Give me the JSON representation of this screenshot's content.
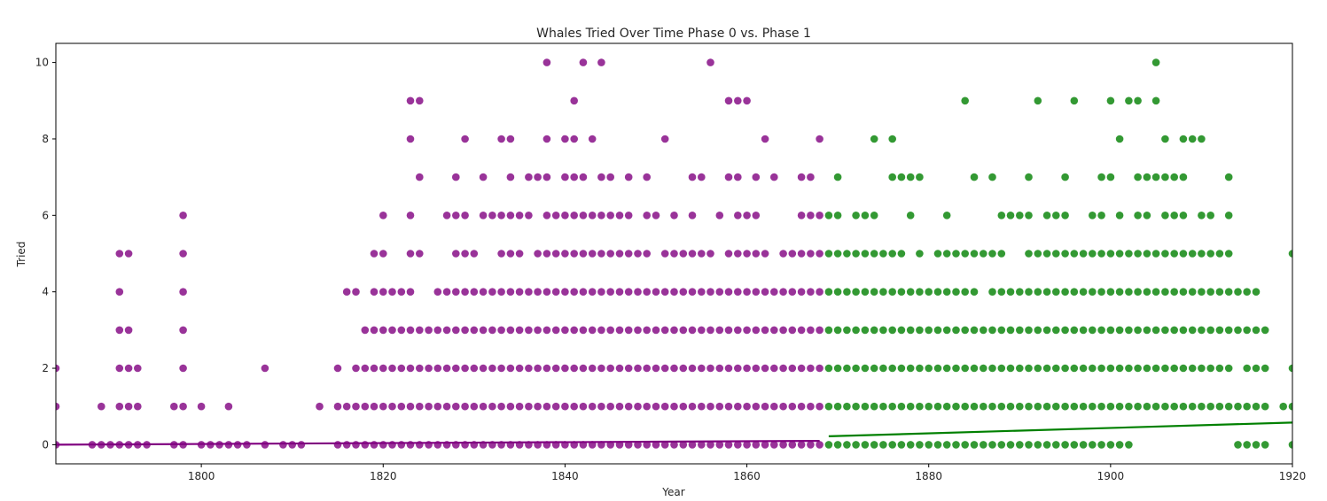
{
  "chart_data": {
    "type": "scatter",
    "title": "Whales Tried Over Time Phase 0 vs. Phase 1",
    "xlabel": "Year",
    "ylabel": "Tried",
    "xlim": [
      1784,
      1920
    ],
    "ylim": [
      -0.5,
      10.5
    ],
    "xticks": [
      1800,
      1820,
      1840,
      1860,
      1880,
      1900,
      1920
    ],
    "yticks": [
      0,
      2,
      4,
      6,
      8,
      10
    ],
    "grid": false,
    "legend": "none",
    "series": [
      {
        "color": "#800080",
        "alpha": 0.8,
        "points_by_y": [
          {
            "y": 0,
            "x": [
              1784,
              1788,
              1789,
              1790,
              1791,
              1792,
              1793,
              1794,
              1797,
              1798,
              1800,
              1801,
              1802,
              1803,
              1804,
              1805,
              1807,
              1809,
              1810,
              1811,
              1815,
              1816,
              1817,
              1818,
              1819,
              1820,
              1821,
              1822,
              1823,
              1824,
              1825,
              1826,
              1827,
              1828,
              1829,
              1830,
              1831,
              1832,
              1833,
              1834,
              1835,
              1836,
              1837,
              1838,
              1839,
              1840,
              1841,
              1842,
              1843,
              1844,
              1845,
              1846,
              1847,
              1848,
              1849,
              1850,
              1851,
              1852,
              1853,
              1854,
              1855,
              1856,
              1857,
              1858,
              1859,
              1860,
              1861,
              1862,
              1863,
              1864,
              1865,
              1866,
              1867,
              1868
            ]
          },
          {
            "y": 1,
            "x": [
              1784,
              1789,
              1791,
              1792,
              1793,
              1797,
              1798,
              1800,
              1803,
              1813,
              1815,
              1816,
              1817,
              1818,
              1819,
              1820,
              1821,
              1822,
              1823,
              1824,
              1825,
              1826,
              1827,
              1828,
              1829,
              1830,
              1831,
              1832,
              1833,
              1834,
              1835,
              1836,
              1837,
              1838,
              1839,
              1840,
              1841,
              1842,
              1843,
              1844,
              1845,
              1846,
              1847,
              1848,
              1849,
              1850,
              1851,
              1852,
              1853,
              1854,
              1855,
              1856,
              1857,
              1858,
              1859,
              1860,
              1861,
              1862,
              1863,
              1864,
              1865,
              1866,
              1867,
              1868
            ]
          },
          {
            "y": 2,
            "x": [
              1784,
              1791,
              1792,
              1793,
              1798,
              1807,
              1815,
              1817,
              1818,
              1819,
              1820,
              1821,
              1822,
              1823,
              1824,
              1825,
              1826,
              1827,
              1828,
              1829,
              1830,
              1831,
              1832,
              1833,
              1834,
              1835,
              1836,
              1837,
              1838,
              1839,
              1840,
              1841,
              1842,
              1843,
              1844,
              1845,
              1846,
              1847,
              1848,
              1849,
              1850,
              1851,
              1852,
              1853,
              1854,
              1855,
              1856,
              1857,
              1858,
              1859,
              1860,
              1861,
              1862,
              1863,
              1864,
              1865,
              1866,
              1867,
              1868
            ]
          },
          {
            "y": 3,
            "x": [
              1791,
              1792,
              1798,
              1818,
              1819,
              1820,
              1821,
              1822,
              1823,
              1824,
              1825,
              1826,
              1827,
              1828,
              1829,
              1830,
              1831,
              1832,
              1833,
              1834,
              1835,
              1836,
              1837,
              1838,
              1839,
              1840,
              1841,
              1842,
              1843,
              1844,
              1845,
              1846,
              1847,
              1848,
              1849,
              1850,
              1851,
              1852,
              1853,
              1854,
              1855,
              1856,
              1857,
              1858,
              1859,
              1860,
              1861,
              1862,
              1863,
              1864,
              1865,
              1866,
              1867,
              1868
            ]
          },
          {
            "y": 4,
            "x": [
              1791,
              1798,
              1816,
              1817,
              1819,
              1820,
              1821,
              1822,
              1823,
              1826,
              1827,
              1828,
              1829,
              1830,
              1831,
              1832,
              1833,
              1834,
              1835,
              1836,
              1837,
              1838,
              1839,
              1840,
              1841,
              1842,
              1843,
              1844,
              1845,
              1846,
              1847,
              1848,
              1849,
              1850,
              1851,
              1852,
              1853,
              1854,
              1855,
              1856,
              1857,
              1858,
              1859,
              1860,
              1861,
              1862,
              1863,
              1864,
              1865,
              1866,
              1867,
              1868
            ]
          },
          {
            "y": 5,
            "x": [
              1791,
              1792,
              1798,
              1819,
              1820,
              1823,
              1824,
              1828,
              1829,
              1830,
              1833,
              1834,
              1835,
              1837,
              1838,
              1839,
              1840,
              1841,
              1842,
              1843,
              1844,
              1845,
              1846,
              1847,
              1848,
              1849,
              1851,
              1852,
              1853,
              1854,
              1855,
              1856,
              1858,
              1859,
              1860,
              1861,
              1862,
              1864,
              1865,
              1866,
              1867,
              1868
            ]
          },
          {
            "y": 6,
            "x": [
              1798,
              1820,
              1823,
              1827,
              1828,
              1829,
              1831,
              1832,
              1833,
              1834,
              1835,
              1836,
              1838,
              1839,
              1840,
              1841,
              1842,
              1843,
              1844,
              1845,
              1846,
              1847,
              1849,
              1850,
              1852,
              1854,
              1857,
              1859,
              1860,
              1861,
              1866,
              1867,
              1868
            ]
          },
          {
            "y": 7,
            "x": [
              1824,
              1828,
              1831,
              1834,
              1836,
              1837,
              1838,
              1840,
              1841,
              1842,
              1844,
              1845,
              1847,
              1849,
              1854,
              1855,
              1858,
              1859,
              1861,
              1863,
              1866,
              1867
            ]
          },
          {
            "y": 8,
            "x": [
              1823,
              1829,
              1833,
              1834,
              1838,
              1840,
              1841,
              1843,
              1851,
              1862,
              1868
            ]
          },
          {
            "y": 9,
            "x": [
              1823,
              1824,
              1841,
              1858,
              1859,
              1860
            ]
          },
          {
            "y": 10,
            "x": [
              1838,
              1842,
              1844,
              1856
            ]
          }
        ],
        "trend": {
          "x": [
            1784,
            1868
          ],
          "y": [
            0.0,
            0.1
          ]
        }
      },
      {
        "color": "#008000",
        "alpha": 0.8,
        "points_by_y": [
          {
            "y": 0,
            "x": [
              1869,
              1870,
              1871,
              1872,
              1873,
              1874,
              1875,
              1876,
              1877,
              1878,
              1879,
              1880,
              1881,
              1882,
              1883,
              1884,
              1885,
              1886,
              1887,
              1888,
              1889,
              1890,
              1891,
              1892,
              1893,
              1894,
              1895,
              1896,
              1897,
              1898,
              1899,
              1900,
              1901,
              1902,
              1914,
              1915,
              1916,
              1917,
              1920
            ]
          },
          {
            "y": 1,
            "x": [
              1869,
              1870,
              1871,
              1872,
              1873,
              1874,
              1875,
              1876,
              1877,
              1878,
              1879,
              1880,
              1881,
              1882,
              1883,
              1884,
              1885,
              1886,
              1887,
              1888,
              1889,
              1890,
              1891,
              1892,
              1893,
              1894,
              1895,
              1896,
              1897,
              1898,
              1899,
              1900,
              1901,
              1902,
              1903,
              1904,
              1905,
              1906,
              1907,
              1908,
              1909,
              1910,
              1911,
              1912,
              1913,
              1914,
              1915,
              1916,
              1917,
              1919,
              1920
            ]
          },
          {
            "y": 2,
            "x": [
              1869,
              1870,
              1871,
              1872,
              1873,
              1874,
              1875,
              1876,
              1877,
              1878,
              1879,
              1880,
              1881,
              1882,
              1883,
              1884,
              1885,
              1886,
              1887,
              1888,
              1889,
              1890,
              1891,
              1892,
              1893,
              1894,
              1895,
              1896,
              1897,
              1898,
              1899,
              1900,
              1901,
              1902,
              1903,
              1904,
              1905,
              1906,
              1907,
              1908,
              1909,
              1910,
              1911,
              1912,
              1913,
              1915,
              1916,
              1917,
              1920
            ]
          },
          {
            "y": 3,
            "x": [
              1869,
              1870,
              1871,
              1872,
              1873,
              1874,
              1875,
              1876,
              1877,
              1878,
              1879,
              1880,
              1881,
              1882,
              1883,
              1884,
              1885,
              1886,
              1887,
              1888,
              1889,
              1890,
              1891,
              1892,
              1893,
              1894,
              1895,
              1896,
              1897,
              1898,
              1899,
              1900,
              1901,
              1902,
              1903,
              1904,
              1905,
              1906,
              1907,
              1908,
              1909,
              1910,
              1911,
              1912,
              1913,
              1914,
              1915,
              1916,
              1917
            ]
          },
          {
            "y": 4,
            "x": [
              1869,
              1870,
              1871,
              1872,
              1873,
              1874,
              1875,
              1876,
              1877,
              1878,
              1879,
              1880,
              1881,
              1882,
              1883,
              1884,
              1885,
              1887,
              1888,
              1889,
              1890,
              1891,
              1892,
              1893,
              1894,
              1895,
              1896,
              1897,
              1898,
              1899,
              1900,
              1901,
              1902,
              1903,
              1904,
              1905,
              1906,
              1907,
              1908,
              1909,
              1910,
              1911,
              1912,
              1913,
              1914,
              1915,
              1916
            ]
          },
          {
            "y": 5,
            "x": [
              1869,
              1870,
              1871,
              1872,
              1873,
              1874,
              1875,
              1876,
              1877,
              1879,
              1881,
              1882,
              1883,
              1884,
              1885,
              1886,
              1887,
              1888,
              1891,
              1892,
              1893,
              1894,
              1895,
              1896,
              1897,
              1898,
              1899,
              1900,
              1901,
              1902,
              1903,
              1904,
              1905,
              1906,
              1907,
              1908,
              1909,
              1910,
              1911,
              1912,
              1913,
              1920
            ]
          },
          {
            "y": 6,
            "x": [
              1869,
              1870,
              1872,
              1873,
              1874,
              1878,
              1882,
              1888,
              1889,
              1890,
              1891,
              1893,
              1894,
              1895,
              1898,
              1899,
              1901,
              1903,
              1904,
              1906,
              1907,
              1908,
              1910,
              1911,
              1913
            ]
          },
          {
            "y": 7,
            "x": [
              1870,
              1876,
              1877,
              1878,
              1879,
              1885,
              1887,
              1891,
              1895,
              1899,
              1900,
              1903,
              1904,
              1905,
              1906,
              1907,
              1908,
              1913
            ]
          },
          {
            "y": 8,
            "x": [
              1874,
              1876,
              1901,
              1906,
              1908,
              1909,
              1910
            ]
          },
          {
            "y": 9,
            "x": [
              1884,
              1892,
              1896,
              1900,
              1902,
              1903,
              1905
            ]
          },
          {
            "y": 10,
            "x": [
              1905
            ]
          }
        ],
        "trend": {
          "x": [
            1869,
            1920
          ],
          "y": [
            0.22,
            0.58
          ]
        }
      }
    ]
  }
}
